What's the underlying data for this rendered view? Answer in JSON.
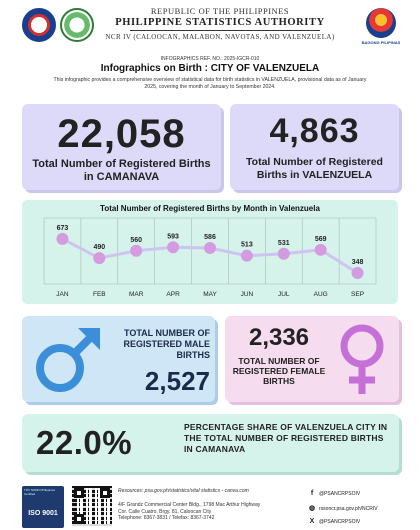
{
  "header": {
    "republic": "REPUBLIC OF THE PHILIPPINES",
    "agency": "PHILIPPINE STATISTICS AUTHORITY",
    "office": "NCR IV (CALOOCAN, MALABON, NAVOTAS, AND VALENZUELA)",
    "bagong": "BAGONG PILIPINAS"
  },
  "release": {
    "ref_no": "INFOGRAPHICS REF. NO.: 2025-IGCR-010",
    "title": "Infographics on Birth : CITY OF VALENZUELA",
    "description": "This infographic provides a comprehensive overview of statistical data for birth statistics in VALENZUELA, provisional data as of January 2025, covering the month of January to September 2024."
  },
  "camanava": {
    "value": "22,058",
    "label": "Total Number of Registered Births in CAMANAVA"
  },
  "valenzuela": {
    "value": "4,863",
    "label": "Total Number of Registered Births in VALENZUELA"
  },
  "chart_data": {
    "type": "line",
    "title": "Total Number of Registered Births  by Month in Valenzuela",
    "categories": [
      "JAN",
      "FEB",
      "MAR",
      "APR",
      "MAY",
      "JUN",
      "JUL",
      "AUG",
      "SEP"
    ],
    "values": [
      673,
      490,
      560,
      593,
      586,
      513,
      531,
      569,
      348
    ],
    "grid": true,
    "colors": {
      "line": "#cfc3ef",
      "point": "#d49be0",
      "background": "#d5f3ea"
    }
  },
  "male": {
    "label": "TOTAL NUMBER OF REGISTERED MALE BIRTHS",
    "value": "2,527",
    "color": "#3b8fd9"
  },
  "female": {
    "value": "2,336",
    "label": "TOTAL NUMBER OF REGISTERED FEMALE BIRTHS",
    "color": "#c470d6"
  },
  "share": {
    "value": "22.0%",
    "label": "PERCENTAGE SHARE OF VALENZUELA CITY IN THE TOTAL NUMBER OF REGISTERED BIRTHS IN CAMANAVA"
  },
  "footer": {
    "iso_small": "TÜV NORD Philippines Certified",
    "iso": "ISO 9001",
    "resources": "Resources: psa.gov.ph/statistics/vital statistics - canva.com",
    "address1": "4/F Grandz Commercial Center Bldg., 1798 Mac Arthur Highway",
    "address2": "Cor. Calle Cuatro, Brgy. 81, Caloocan City",
    "phone": "Telephone: 8367-3831 / Telefax: 8367-3742",
    "facebook": "@PSANCRPSOIV",
    "website": "rssoncr.psa.gov.ph/NCRIV",
    "twitter": "@PSANCRPSOIV"
  }
}
